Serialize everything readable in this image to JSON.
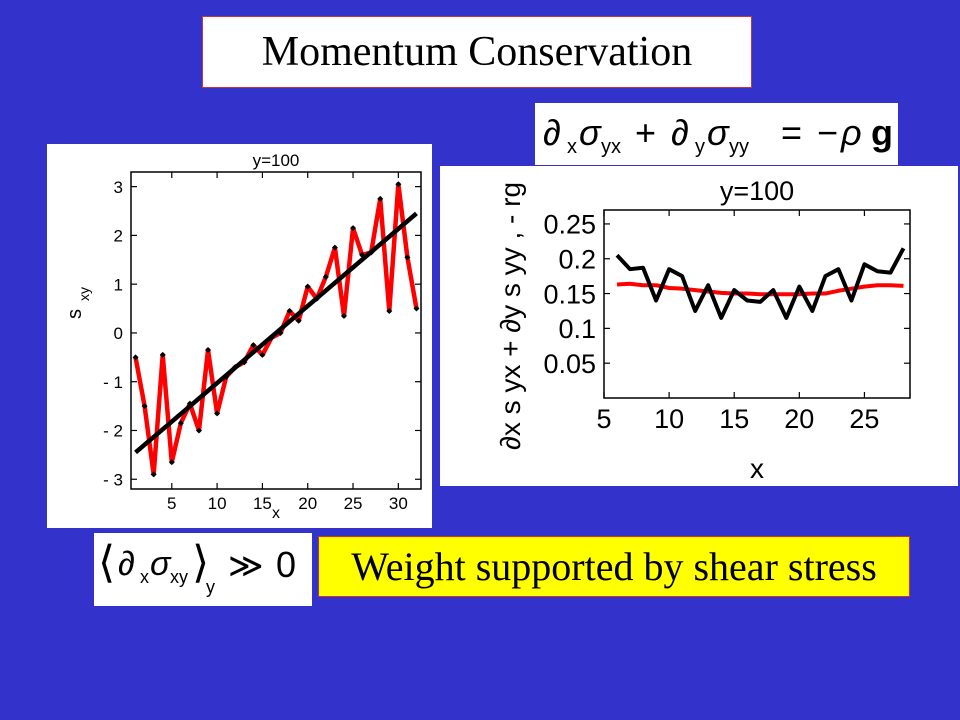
{
  "title": "Momentum Conservation",
  "caption": "Weight supported by shear stress",
  "equation_top": {
    "p1": "∂",
    "s1": "x",
    "sig1": "σ",
    "s2": "yx",
    "plus": "+",
    "p2": "∂",
    "s3": "y",
    "sig2": "σ",
    "s4": "yy",
    "eq": "=",
    "minus": "−",
    "rho": "ρ",
    "g": "g"
  },
  "equation_bottom": {
    "open": "⟨",
    "p": "∂",
    "s1": "x",
    "sig": "σ",
    "s2": "xy",
    "close": "⟩",
    "s3": "y",
    "rel": "≫",
    "zero": "0"
  },
  "chart_data": [
    {
      "type": "line",
      "title": "y=100",
      "xlabel": "x",
      "ylabel": "s",
      "ylabel_sub": "xy",
      "xlim": [
        0.5,
        32.5
      ],
      "ylim": [
        -3.2,
        3.3
      ],
      "x_ticks": [
        5,
        10,
        15,
        20,
        25,
        30
      ],
      "y_ticks": [
        3,
        2,
        1,
        0,
        -1,
        -2,
        -3
      ],
      "y_tick_labels": [
        "3",
        "2",
        "1",
        "0",
        "- 1",
        "- 2",
        "- 3"
      ],
      "series": [
        {
          "color": "#ff0000",
          "marker": "diamond",
          "x": [
            1,
            2,
            3,
            4,
            5,
            6,
            7,
            8,
            9,
            10,
            11,
            12,
            13,
            14,
            15,
            16,
            17,
            18,
            19,
            20,
            21,
            22,
            23,
            24,
            25,
            26,
            27,
            28,
            29,
            30,
            31,
            32
          ],
          "y": [
            -0.5,
            -1.5,
            -2.9,
            -0.45,
            -2.65,
            -1.85,
            -1.45,
            -2.0,
            -0.35,
            -1.65,
            -0.9,
            -0.7,
            -0.6,
            -0.25,
            -0.45,
            -0.1,
            0.0,
            0.45,
            0.25,
            0.95,
            0.7,
            1.15,
            1.75,
            0.35,
            2.15,
            1.6,
            1.65,
            2.75,
            0.45,
            3.05,
            1.55,
            0.5
          ]
        },
        {
          "color": "#000000",
          "x": [
            1,
            32
          ],
          "y": [
            -2.45,
            2.45
          ]
        }
      ]
    },
    {
      "type": "line",
      "title": "y=100",
      "xlabel": "x",
      "ylabel": "∂x s yx + ∂y s yy ,  - rg",
      "xlim": [
        5,
        28.5
      ],
      "ylim": [
        0,
        0.27
      ],
      "x_ticks": [
        5,
        10,
        15,
        20,
        25
      ],
      "y_ticks": [
        0.25,
        0.2,
        0.15,
        0.1,
        0.05
      ],
      "y_tick_labels": [
        "0.25",
        "0.2",
        "0.15",
        "0.1",
        "0.05"
      ],
      "series": [
        {
          "color": "#ff0000",
          "x": [
            6,
            7,
            8,
            9,
            10,
            11,
            12,
            13,
            14,
            15,
            16,
            17,
            18,
            19,
            20,
            21,
            22,
            23,
            24,
            25,
            26,
            27,
            28
          ],
          "y": [
            0.163,
            0.164,
            0.162,
            0.162,
            0.158,
            0.157,
            0.155,
            0.153,
            0.151,
            0.15,
            0.15,
            0.149,
            0.149,
            0.149,
            0.149,
            0.15,
            0.15,
            0.154,
            0.157,
            0.16,
            0.162,
            0.162,
            0.161
          ]
        },
        {
          "color": "#000000",
          "x": [
            6,
            7,
            8,
            9,
            10,
            11,
            12,
            13,
            14,
            15,
            16,
            17,
            18,
            19,
            20,
            21,
            22,
            23,
            24,
            25,
            26,
            27,
            28
          ],
          "y": [
            0.205,
            0.185,
            0.187,
            0.14,
            0.185,
            0.175,
            0.125,
            0.162,
            0.115,
            0.155,
            0.14,
            0.138,
            0.155,
            0.115,
            0.16,
            0.125,
            0.175,
            0.185,
            0.14,
            0.192,
            0.182,
            0.18,
            0.215
          ]
        }
      ]
    }
  ]
}
